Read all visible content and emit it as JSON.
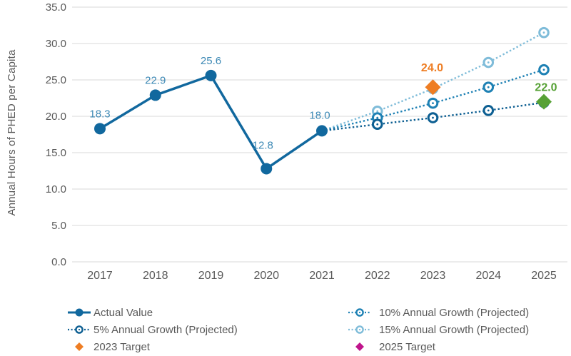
{
  "chart_data": {
    "type": "line",
    "title": "",
    "xlabel": "",
    "ylabel": "Annual Hours of PHED per Capita",
    "ylim": [
      0,
      35
    ],
    "grid": "horizontal",
    "legend_position": "bottom",
    "yticks": [
      {
        "value": 0,
        "label": "0.0"
      },
      {
        "value": 5,
        "label": "5.0"
      },
      {
        "value": 10,
        "label": "10.0"
      },
      {
        "value": 15,
        "label": "15.0"
      },
      {
        "value": 20,
        "label": "20.0"
      },
      {
        "value": 25,
        "label": "25.0"
      },
      {
        "value": 30,
        "label": "30.0"
      },
      {
        "value": 35,
        "label": "35.0"
      }
    ],
    "categories": [
      2017,
      2018,
      2019,
      2020,
      2021,
      2022,
      2023,
      2024,
      2025
    ],
    "series": [
      {
        "name": "15% Annual Growth (Projected)",
        "style": "dotted",
        "marker": "ring",
        "color": "#7fbcd9",
        "start_index": 4,
        "values": [
          18.0,
          20.7,
          23.8,
          27.4,
          31.5
        ]
      },
      {
        "name": "10% Annual Growth (Projected)",
        "style": "dotted",
        "marker": "ring",
        "color": "#1e81b4",
        "start_index": 4,
        "values": [
          18.0,
          19.8,
          21.8,
          24.0,
          26.4
        ]
      },
      {
        "name": "5% Annual Growth (Projected)",
        "style": "dotted",
        "marker": "ring",
        "color": "#0d5f92",
        "start_index": 4,
        "values": [
          18.0,
          18.9,
          19.8,
          20.8,
          21.9
        ]
      },
      {
        "name": "Actual Value",
        "style": "solid",
        "marker": "filled-circle",
        "color": "#11689e",
        "label_color": "#3d89b5",
        "start_index": 0,
        "values": [
          18.3,
          22.9,
          25.6,
          12.8,
          18.0
        ],
        "point_labels": [
          "18.3",
          "22.9",
          "25.6",
          "12.8",
          "18.0"
        ],
        "label_offsets": [
          [
            0,
            -16
          ],
          [
            0,
            -16
          ],
          [
            0,
            -16
          ],
          [
            -5,
            -28
          ],
          [
            -3,
            -17
          ]
        ]
      }
    ],
    "targets": [
      {
        "name": "2023 Target",
        "year": 2023,
        "value": 24.0,
        "label": "24.0",
        "color": "#ee7d23",
        "label_offset": [
          -1,
          -22
        ]
      },
      {
        "name": "2025 Target",
        "year": 2025,
        "value": 22.0,
        "label": "22.0",
        "color": "#56a135",
        "label_offset": [
          3,
          -15
        ]
      }
    ],
    "legend": {
      "columns": [
        [
          {
            "label": "Actual Value",
            "swatch": "line-filled",
            "color": "#11689e"
          },
          {
            "label": "5% Annual Growth (Projected)",
            "swatch": "line-ring",
            "color": "#0d5f92"
          },
          {
            "label": "2023 Target",
            "swatch": "diamond",
            "color": "#ee7d23"
          }
        ],
        [
          {
            "label": "10% Annual Growth (Projected)",
            "swatch": "line-ring",
            "color": "#1e81b4"
          },
          {
            "label": "15% Annual Growth (Projected)",
            "swatch": "line-ring",
            "color": "#7fbcd9"
          },
          {
            "label": "2025 Target",
            "swatch": "diamond",
            "color": "#c0148c"
          }
        ]
      ]
    },
    "colors": {
      "gridline": "#d9d9d9",
      "axis_text": "#595959",
      "actual_line": "#11689e",
      "data_label_blue": "#3d89b5",
      "growth_5pct": "#0d5f92",
      "growth_10pct": "#1e81b4",
      "growth_15pct": "#7fbcd9",
      "target_2023_orange": "#ee7d23",
      "target_2025_chart_green": "#56a135",
      "target_2025_legend_magenta": "#c0148c"
    }
  }
}
